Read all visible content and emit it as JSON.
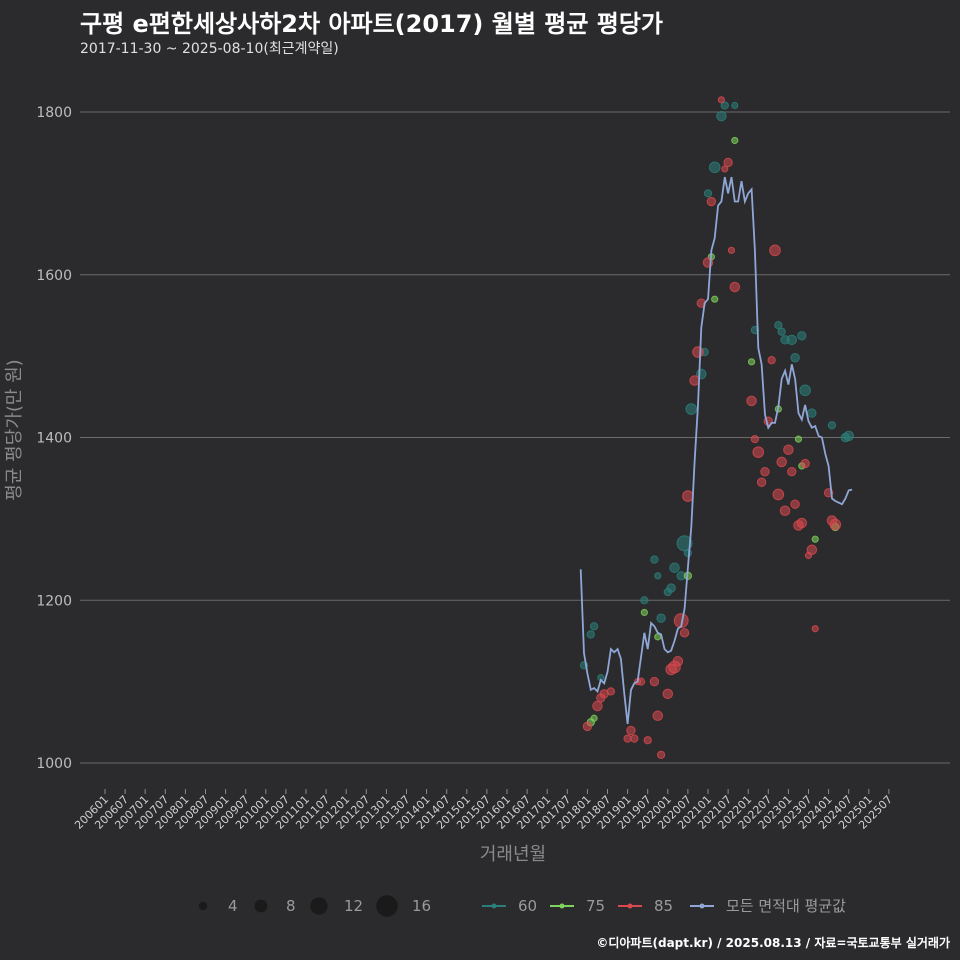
{
  "title": "구평 e편한세상사하2차 아파트(2017) 월별 평균 평당가",
  "subtitle": "2017-11-30 ~ 2025-08-10(최근계약일)",
  "caption": "©디아파트(dapt.kr) / 2025.08.13 / 자료=국토교통부 실거래가",
  "chart_data": {
    "type": "scatter",
    "title": "구평 e편한세상사하2차 아파트(2017) 월별 평균 평당가",
    "xlabel": "거래년월",
    "ylabel": "평균 평당가(만 원)",
    "ylim": [
      950,
      1830
    ],
    "yticks": [
      1000,
      1200,
      1400,
      1600,
      1800
    ],
    "x_categories": [
      "200601",
      "200607",
      "200701",
      "200707",
      "200801",
      "200807",
      "200901",
      "200907",
      "201001",
      "201007",
      "201101",
      "201107",
      "201201",
      "201207",
      "201301",
      "201307",
      "201401",
      "201407",
      "201501",
      "201507",
      "201601",
      "201607",
      "201701",
      "201707",
      "201801",
      "201807",
      "201901",
      "201907",
      "202001",
      "202007",
      "202101",
      "202107",
      "202201",
      "202207",
      "202301",
      "202307",
      "202401",
      "202407",
      "202501",
      "202507"
    ],
    "size_legend": {
      "title": "",
      "values": [
        4,
        8,
        12,
        16
      ]
    },
    "color_legend": [
      {
        "name": "60",
        "color": "#2a7f7a"
      },
      {
        "name": "75",
        "color": "#7fd35a"
      },
      {
        "name": "85",
        "color": "#d9484f"
      },
      {
        "name": "모든 면적대 평균값",
        "color": "#8fa7d6"
      }
    ],
    "avg_line": [
      [
        "2017-11",
        1238
      ],
      [
        "2017-12",
        1135
      ],
      [
        "2018-01",
        1110
      ],
      [
        "2018-02",
        1090
      ],
      [
        "2018-03",
        1092
      ],
      [
        "2018-04",
        1088
      ],
      [
        "2018-05",
        1102
      ],
      [
        "2018-06",
        1098
      ],
      [
        "2018-07",
        1112
      ],
      [
        "2018-08",
        1140
      ],
      [
        "2018-09",
        1136
      ],
      [
        "2018-10",
        1140
      ],
      [
        "2018-11",
        1128
      ],
      [
        "2018-12",
        1085
      ],
      [
        "2019-01",
        1048
      ],
      [
        "2019-02",
        1090
      ],
      [
        "2019-03",
        1098
      ],
      [
        "2019-04",
        1100
      ],
      [
        "2019-05",
        1130
      ],
      [
        "2019-06",
        1160
      ],
      [
        "2019-07",
        1140
      ],
      [
        "2019-08",
        1172
      ],
      [
        "2019-09",
        1168
      ],
      [
        "2019-10",
        1160
      ],
      [
        "2019-11",
        1158
      ],
      [
        "2019-12",
        1140
      ],
      [
        "2020-01",
        1136
      ],
      [
        "2020-02",
        1138
      ],
      [
        "2020-03",
        1150
      ],
      [
        "2020-04",
        1165
      ],
      [
        "2020-05",
        1168
      ],
      [
        "2020-06",
        1190
      ],
      [
        "2020-07",
        1240
      ],
      [
        "2020-08",
        1290
      ],
      [
        "2020-09",
        1370
      ],
      [
        "2020-10",
        1440
      ],
      [
        "2020-11",
        1535
      ],
      [
        "2020-12",
        1565
      ],
      [
        "2021-01",
        1570
      ],
      [
        "2021-02",
        1630
      ],
      [
        "2021-03",
        1645
      ],
      [
        "2021-04",
        1685
      ],
      [
        "2021-05",
        1690
      ],
      [
        "2021-06",
        1720
      ],
      [
        "2021-07",
        1700
      ],
      [
        "2021-08",
        1720
      ],
      [
        "2021-09",
        1690
      ],
      [
        "2021-10",
        1690
      ],
      [
        "2021-11",
        1715
      ],
      [
        "2021-12",
        1690
      ],
      [
        "2022-01",
        1700
      ],
      [
        "2022-02",
        1705
      ],
      [
        "2022-03",
        1630
      ],
      [
        "2022-04",
        1510
      ],
      [
        "2022-05",
        1490
      ],
      [
        "2022-06",
        1428
      ],
      [
        "2022-07",
        1412
      ],
      [
        "2022-08",
        1418
      ],
      [
        "2022-09",
        1418
      ],
      [
        "2022-10",
        1438
      ],
      [
        "2022-11",
        1472
      ],
      [
        "2022-12",
        1482
      ],
      [
        "2023-01",
        1465
      ],
      [
        "2023-02",
        1490
      ],
      [
        "2023-03",
        1472
      ],
      [
        "2023-04",
        1430
      ],
      [
        "2023-05",
        1422
      ],
      [
        "2023-06",
        1440
      ],
      [
        "2023-07",
        1420
      ],
      [
        "2023-08",
        1412
      ],
      [
        "2023-09",
        1414
      ],
      [
        "2023-10",
        1402
      ],
      [
        "2023-11",
        1400
      ],
      [
        "2023-12",
        1380
      ],
      [
        "2024-01",
        1365
      ],
      [
        "2024-02",
        1325
      ],
      [
        "2024-03",
        1322
      ],
      [
        "2024-04",
        1320
      ],
      [
        "2024-05",
        1318
      ],
      [
        "2024-06",
        1325
      ],
      [
        "2024-07",
        1335
      ],
      [
        "2024-08",
        1336
      ]
    ],
    "series": [
      {
        "name": "60",
        "color": "#2a7f7a",
        "points": [
          [
            "2017-12",
            1120,
            3
          ],
          [
            "2018-02",
            1158,
            3
          ],
          [
            "2018-03",
            1168,
            3
          ],
          [
            "2018-05",
            1105,
            2
          ],
          [
            "2019-06",
            1200,
            3
          ],
          [
            "2019-09",
            1250,
            3
          ],
          [
            "2019-10",
            1230,
            2
          ],
          [
            "2019-11",
            1178,
            4
          ],
          [
            "2020-01",
            1210,
            3
          ],
          [
            "2020-02",
            1215,
            4
          ],
          [
            "2020-03",
            1240,
            5
          ],
          [
            "2020-05",
            1230,
            4
          ],
          [
            "2020-06",
            1270,
            10
          ],
          [
            "2020-07",
            1258,
            3
          ],
          [
            "2020-08",
            1435,
            6
          ],
          [
            "2020-11",
            1478,
            5
          ],
          [
            "2020-12",
            1505,
            3
          ],
          [
            "2021-01",
            1700,
            3
          ],
          [
            "2021-03",
            1732,
            6
          ],
          [
            "2021-05",
            1795,
            5
          ],
          [
            "2021-06",
            1808,
            3
          ],
          [
            "2021-09",
            1808,
            2
          ],
          [
            "2022-03",
            1532,
            3
          ],
          [
            "2022-10",
            1538,
            3
          ],
          [
            "2022-11",
            1530,
            3
          ],
          [
            "2022-12",
            1520,
            4
          ],
          [
            "2023-02",
            1520,
            5
          ],
          [
            "2023-03",
            1498,
            4
          ],
          [
            "2023-05",
            1525,
            4
          ],
          [
            "2023-06",
            1458,
            6
          ],
          [
            "2023-08",
            1430,
            4
          ],
          [
            "2024-06",
            1400,
            4
          ],
          [
            "2024-07",
            1402,
            5
          ],
          [
            "2024-02",
            1415,
            3
          ]
        ]
      },
      {
        "name": "75",
        "color": "#7fd35a",
        "points": [
          [
            "2018-02",
            1050,
            3
          ],
          [
            "2018-03",
            1055,
            2
          ],
          [
            "2019-06",
            1185,
            2
          ],
          [
            "2019-10",
            1155,
            2
          ],
          [
            "2020-07",
            1230,
            3
          ],
          [
            "2021-02",
            1622,
            2
          ],
          [
            "2021-03",
            1570,
            2
          ],
          [
            "2021-09",
            1765,
            2
          ],
          [
            "2022-02",
            1493,
            2
          ],
          [
            "2022-10",
            1435,
            2
          ],
          [
            "2023-04",
            1398,
            2
          ],
          [
            "2023-05",
            1365,
            2
          ],
          [
            "2024-03",
            1290,
            3
          ],
          [
            "2023-09",
            1275,
            2
          ]
        ]
      },
      {
        "name": "85",
        "color": "#d9484f",
        "points": [
          [
            "2018-01",
            1045,
            4
          ],
          [
            "2018-04",
            1070,
            5
          ],
          [
            "2018-05",
            1080,
            4
          ],
          [
            "2018-06",
            1085,
            4
          ],
          [
            "2018-08",
            1088,
            3
          ],
          [
            "2019-01",
            1030,
            3
          ],
          [
            "2019-02",
            1040,
            4
          ],
          [
            "2019-03",
            1030,
            3
          ],
          [
            "2019-04",
            1100,
            2
          ],
          [
            "2019-05",
            1100,
            3
          ],
          [
            "2019-07",
            1028,
            3
          ],
          [
            "2019-09",
            1100,
            4
          ],
          [
            "2019-10",
            1058,
            5
          ],
          [
            "2019-11",
            1010,
            3
          ],
          [
            "2020-01",
            1085,
            5
          ],
          [
            "2020-02",
            1115,
            6
          ],
          [
            "2020-03",
            1118,
            7
          ],
          [
            "2020-04",
            1125,
            5
          ],
          [
            "2020-05",
            1175,
            9
          ],
          [
            "2020-06",
            1160,
            4
          ],
          [
            "2020-07",
            1328,
            6
          ],
          [
            "2020-09",
            1470,
            5
          ],
          [
            "2020-10",
            1505,
            6
          ],
          [
            "2020-11",
            1565,
            4
          ],
          [
            "2021-01",
            1615,
            5
          ],
          [
            "2021-02",
            1690,
            4
          ],
          [
            "2021-05",
            1815,
            2
          ],
          [
            "2021-06",
            1730,
            2
          ],
          [
            "2021-07",
            1738,
            4
          ],
          [
            "2021-08",
            1630,
            2
          ],
          [
            "2021-09",
            1585,
            5
          ],
          [
            "2022-02",
            1445,
            5
          ],
          [
            "2022-03",
            1398,
            3
          ],
          [
            "2022-04",
            1382,
            6
          ],
          [
            "2022-05",
            1345,
            4
          ],
          [
            "2022-06",
            1358,
            4
          ],
          [
            "2022-07",
            1420,
            4
          ],
          [
            "2022-08",
            1495,
            3
          ],
          [
            "2022-09",
            1630,
            6
          ],
          [
            "2022-10",
            1330,
            6
          ],
          [
            "2022-11",
            1370,
            5
          ],
          [
            "2022-12",
            1310,
            5
          ],
          [
            "2023-01",
            1385,
            5
          ],
          [
            "2023-02",
            1358,
            4
          ],
          [
            "2023-03",
            1318,
            4
          ],
          [
            "2023-04",
            1292,
            5
          ],
          [
            "2023-05",
            1295,
            5
          ],
          [
            "2023-06",
            1368,
            4
          ],
          [
            "2023-07",
            1255,
            2
          ],
          [
            "2023-08",
            1262,
            5
          ],
          [
            "2023-09",
            1165,
            2
          ],
          [
            "2024-01",
            1332,
            4
          ],
          [
            "2024-02",
            1298,
            5
          ],
          [
            "2024-03",
            1293,
            6
          ]
        ]
      }
    ]
  }
}
